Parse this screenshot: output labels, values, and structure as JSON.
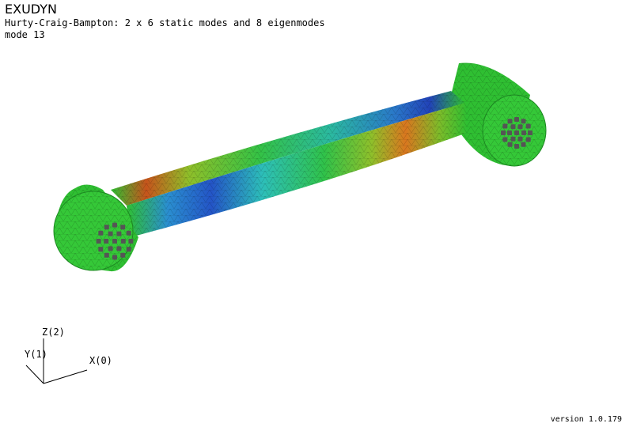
{
  "header": {
    "app_title": "EXUDYN",
    "subtitle": "Hurty-Craig-Bampton: 2 x 6 static modes and 8 eigenmodes",
    "mode_label": "mode 13"
  },
  "axes": {
    "x_label": "X(0)",
    "y_label": "Y(1)",
    "z_label": "Z(2)"
  },
  "footer": {
    "version": "version 1.0.179"
  },
  "colors": {
    "mesh_green": "#2fbf32",
    "stress_blue": "#2455c7",
    "stress_orange": "#d9771f",
    "stress_red": "#c23a1e",
    "bolt_gray": "#555555"
  }
}
